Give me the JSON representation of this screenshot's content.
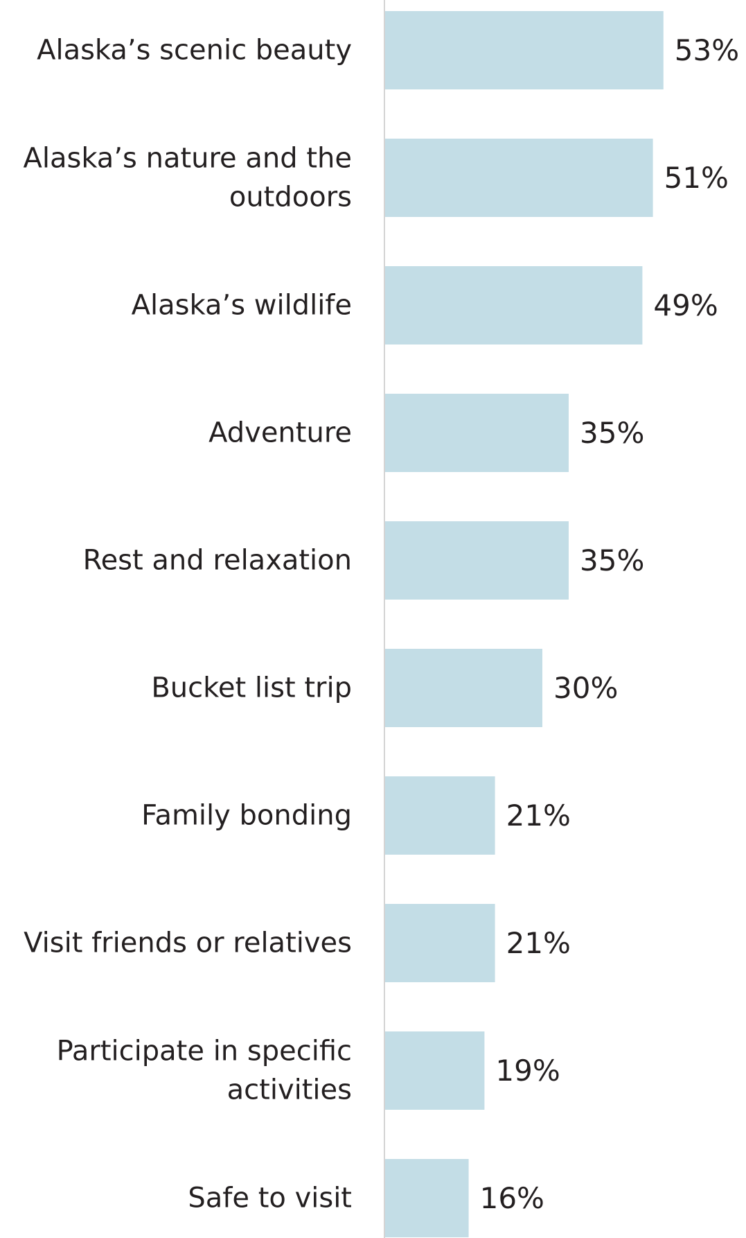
{
  "chart_data": {
    "type": "bar",
    "orientation": "horizontal",
    "categories": [
      [
        "Alaska’s scenic beauty"
      ],
      [
        "Alaska’s nature and the",
        "outdoors"
      ],
      [
        "Alaska’s wildlife"
      ],
      [
        "Adventure"
      ],
      [
        "Rest and relaxation"
      ],
      [
        "Bucket list trip"
      ],
      [
        "Family bonding"
      ],
      [
        "Visit friends or relatives"
      ],
      [
        "Participate in specific",
        "activities"
      ],
      [
        "Safe to visit"
      ]
    ],
    "values": [
      53,
      51,
      49,
      35,
      35,
      30,
      21,
      21,
      19,
      16
    ],
    "value_labels": [
      "53%",
      "51%",
      "49%",
      "35%",
      "35%",
      "30%",
      "21%",
      "21%",
      "19%",
      "16%"
    ],
    "unit": "%",
    "xlim": [
      0,
      60
    ],
    "grid": false,
    "colors": {
      "bar": "#c3dde6",
      "axis": "#d4d4d4",
      "text": "#231f20"
    }
  }
}
